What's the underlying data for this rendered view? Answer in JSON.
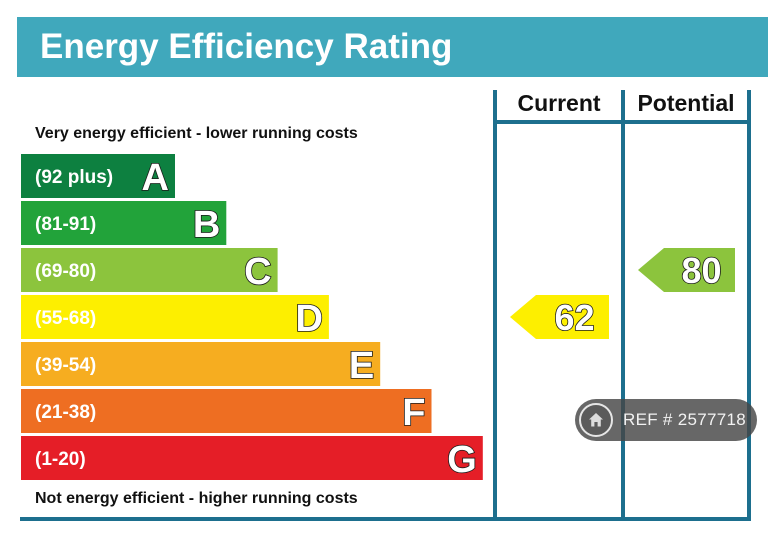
{
  "chart_data": {
    "type": "bar",
    "title": "Energy Efficiency Rating",
    "columns": {
      "current": "Current",
      "potential": "Potential"
    },
    "top_note": "Very energy efficient - lower running costs",
    "bottom_note": "Not energy efficient - higher running costs",
    "bands": [
      {
        "letter": "A",
        "range": "(92 plus)",
        "min": 92,
        "max": 100,
        "color": "#0d8040"
      },
      {
        "letter": "B",
        "range": "(81-91)",
        "min": 81,
        "max": 91,
        "color": "#22a33a"
      },
      {
        "letter": "C",
        "range": "(69-80)",
        "min": 69,
        "max": 80,
        "color": "#8cc43d"
      },
      {
        "letter": "D",
        "range": "(55-68)",
        "min": 55,
        "max": 68,
        "color": "#fdef00"
      },
      {
        "letter": "E",
        "range": "(39-54)",
        "min": 39,
        "max": 54,
        "color": "#f6ad20"
      },
      {
        "letter": "F",
        "range": "(21-38)",
        "min": 21,
        "max": 38,
        "color": "#ee6e22"
      },
      {
        "letter": "G",
        "range": "(1-20)",
        "min": 1,
        "max": 20,
        "color": "#e51e27"
      }
    ],
    "current": {
      "value": 62,
      "band": "D",
      "color": "#fdef00"
    },
    "potential": {
      "value": 80,
      "band": "C",
      "color": "#8cc43d"
    }
  },
  "colors": {
    "title_bar": "#40a8bc",
    "frame": "#1d6f8e"
  },
  "badge": {
    "text": "REF # 2577718",
    "icon": "home-icon"
  }
}
